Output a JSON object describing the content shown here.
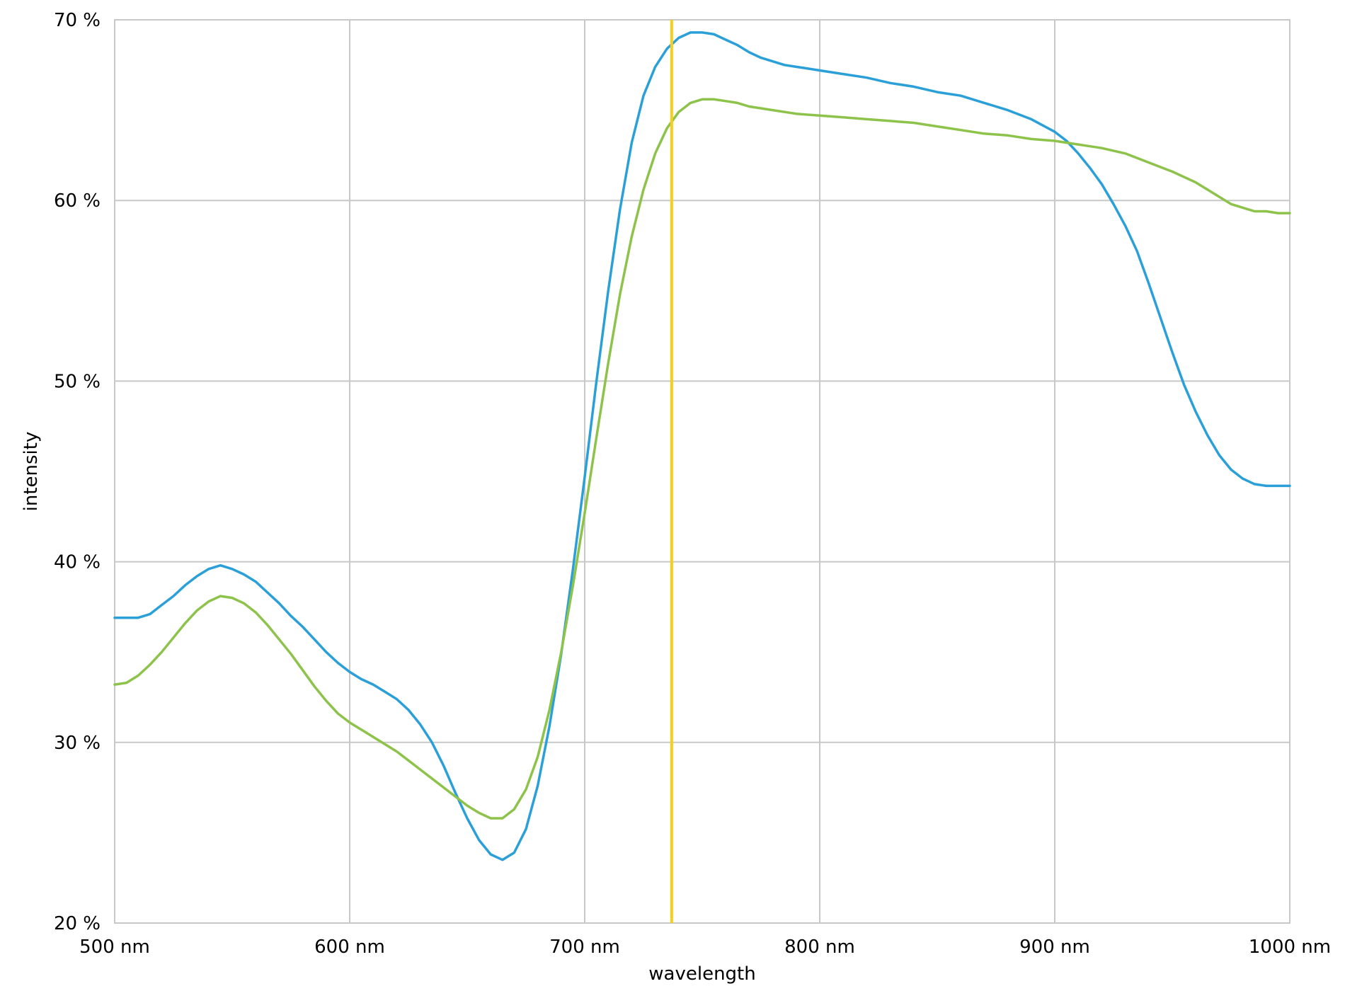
{
  "chart_data": {
    "type": "line",
    "title": "",
    "xlabel": "wavelength",
    "ylabel": "intensity",
    "xlim": [
      500,
      1000
    ],
    "ylim": [
      20,
      70
    ],
    "grid": true,
    "x_ticks": [
      {
        "value": 500,
        "label": "500 nm"
      },
      {
        "value": 600,
        "label": "600 nm"
      },
      {
        "value": 700,
        "label": "700 nm"
      },
      {
        "value": 800,
        "label": "800 nm"
      },
      {
        "value": 900,
        "label": "900 nm"
      },
      {
        "value": 1000,
        "label": "1000 nm"
      }
    ],
    "y_ticks": [
      {
        "value": 20,
        "label": "20 %"
      },
      {
        "value": 30,
        "label": "30 %"
      },
      {
        "value": 40,
        "label": "40 %"
      },
      {
        "value": 50,
        "label": "50 %"
      },
      {
        "value": 60,
        "label": "60 %"
      },
      {
        "value": 70,
        "label": "70 %"
      }
    ],
    "vline": {
      "x": 737,
      "color": "#f5cf1a"
    },
    "series": [
      {
        "color": "#2a9fd8",
        "points": [
          [
            500,
            36.9
          ],
          [
            505,
            36.9
          ],
          [
            510,
            36.9
          ],
          [
            515,
            37.1
          ],
          [
            520,
            37.6
          ],
          [
            525,
            38.1
          ],
          [
            530,
            38.7
          ],
          [
            535,
            39.2
          ],
          [
            540,
            39.6
          ],
          [
            545,
            39.8
          ],
          [
            550,
            39.6
          ],
          [
            555,
            39.3
          ],
          [
            560,
            38.9
          ],
          [
            565,
            38.3
          ],
          [
            570,
            37.7
          ],
          [
            575,
            37.0
          ],
          [
            580,
            36.4
          ],
          [
            585,
            35.7
          ],
          [
            590,
            35.0
          ],
          [
            595,
            34.4
          ],
          [
            600,
            33.9
          ],
          [
            605,
            33.5
          ],
          [
            610,
            33.2
          ],
          [
            615,
            32.8
          ],
          [
            620,
            32.4
          ],
          [
            625,
            31.8
          ],
          [
            630,
            31.0
          ],
          [
            635,
            30.0
          ],
          [
            640,
            28.7
          ],
          [
            645,
            27.2
          ],
          [
            650,
            25.8
          ],
          [
            655,
            24.6
          ],
          [
            660,
            23.8
          ],
          [
            665,
            23.5
          ],
          [
            670,
            23.9
          ],
          [
            675,
            25.2
          ],
          [
            680,
            27.6
          ],
          [
            685,
            30.9
          ],
          [
            690,
            34.9
          ],
          [
            695,
            39.6
          ],
          [
            700,
            44.7
          ],
          [
            705,
            50.0
          ],
          [
            710,
            55.0
          ],
          [
            715,
            59.5
          ],
          [
            720,
            63.2
          ],
          [
            725,
            65.8
          ],
          [
            730,
            67.4
          ],
          [
            735,
            68.4
          ],
          [
            740,
            69.0
          ],
          [
            745,
            69.3
          ],
          [
            750,
            69.3
          ],
          [
            755,
            69.2
          ],
          [
            760,
            68.9
          ],
          [
            765,
            68.6
          ],
          [
            770,
            68.2
          ],
          [
            775,
            67.9
          ],
          [
            780,
            67.7
          ],
          [
            785,
            67.5
          ],
          [
            790,
            67.4
          ],
          [
            795,
            67.3
          ],
          [
            800,
            67.2
          ],
          [
            810,
            67.0
          ],
          [
            820,
            66.8
          ],
          [
            830,
            66.5
          ],
          [
            840,
            66.3
          ],
          [
            850,
            66.0
          ],
          [
            860,
            65.8
          ],
          [
            870,
            65.4
          ],
          [
            880,
            65.0
          ],
          [
            890,
            64.5
          ],
          [
            900,
            63.8
          ],
          [
            905,
            63.3
          ],
          [
            910,
            62.6
          ],
          [
            915,
            61.8
          ],
          [
            920,
            60.9
          ],
          [
            925,
            59.8
          ],
          [
            930,
            58.6
          ],
          [
            935,
            57.2
          ],
          [
            940,
            55.4
          ],
          [
            945,
            53.5
          ],
          [
            950,
            51.6
          ],
          [
            955,
            49.8
          ],
          [
            960,
            48.3
          ],
          [
            965,
            47.0
          ],
          [
            970,
            45.9
          ],
          [
            975,
            45.1
          ],
          [
            980,
            44.6
          ],
          [
            985,
            44.3
          ],
          [
            990,
            44.2
          ],
          [
            995,
            44.2
          ],
          [
            1000,
            44.2
          ]
        ]
      },
      {
        "color": "#8dc34a",
        "points": [
          [
            500,
            33.2
          ],
          [
            505,
            33.3
          ],
          [
            510,
            33.7
          ],
          [
            515,
            34.3
          ],
          [
            520,
            35.0
          ],
          [
            525,
            35.8
          ],
          [
            530,
            36.6
          ],
          [
            535,
            37.3
          ],
          [
            540,
            37.8
          ],
          [
            545,
            38.1
          ],
          [
            550,
            38.0
          ],
          [
            555,
            37.7
          ],
          [
            560,
            37.2
          ],
          [
            565,
            36.5
          ],
          [
            570,
            35.7
          ],
          [
            575,
            34.9
          ],
          [
            580,
            34.0
          ],
          [
            585,
            33.1
          ],
          [
            590,
            32.3
          ],
          [
            595,
            31.6
          ],
          [
            600,
            31.1
          ],
          [
            605,
            30.7
          ],
          [
            610,
            30.3
          ],
          [
            615,
            29.9
          ],
          [
            620,
            29.5
          ],
          [
            625,
            29.0
          ],
          [
            630,
            28.5
          ],
          [
            635,
            28.0
          ],
          [
            640,
            27.5
          ],
          [
            645,
            27.0
          ],
          [
            650,
            26.5
          ],
          [
            655,
            26.1
          ],
          [
            660,
            25.8
          ],
          [
            665,
            25.8
          ],
          [
            670,
            26.3
          ],
          [
            675,
            27.4
          ],
          [
            680,
            29.2
          ],
          [
            685,
            31.8
          ],
          [
            690,
            35.0
          ],
          [
            695,
            38.7
          ],
          [
            700,
            42.7
          ],
          [
            705,
            46.9
          ],
          [
            710,
            51.0
          ],
          [
            715,
            54.8
          ],
          [
            720,
            58.0
          ],
          [
            725,
            60.6
          ],
          [
            730,
            62.6
          ],
          [
            735,
            64.0
          ],
          [
            740,
            64.9
          ],
          [
            745,
            65.4
          ],
          [
            750,
            65.6
          ],
          [
            755,
            65.6
          ],
          [
            760,
            65.5
          ],
          [
            765,
            65.4
          ],
          [
            770,
            65.2
          ],
          [
            775,
            65.1
          ],
          [
            780,
            65.0
          ],
          [
            790,
            64.8
          ],
          [
            800,
            64.7
          ],
          [
            810,
            64.6
          ],
          [
            820,
            64.5
          ],
          [
            830,
            64.4
          ],
          [
            840,
            64.3
          ],
          [
            850,
            64.1
          ],
          [
            860,
            63.9
          ],
          [
            870,
            63.7
          ],
          [
            880,
            63.6
          ],
          [
            890,
            63.4
          ],
          [
            900,
            63.3
          ],
          [
            910,
            63.1
          ],
          [
            920,
            62.9
          ],
          [
            930,
            62.6
          ],
          [
            940,
            62.1
          ],
          [
            950,
            61.6
          ],
          [
            960,
            61.0
          ],
          [
            965,
            60.6
          ],
          [
            970,
            60.2
          ],
          [
            975,
            59.8
          ],
          [
            980,
            59.6
          ],
          [
            985,
            59.4
          ],
          [
            990,
            59.4
          ],
          [
            995,
            59.3
          ],
          [
            1000,
            59.3
          ]
        ]
      }
    ]
  }
}
